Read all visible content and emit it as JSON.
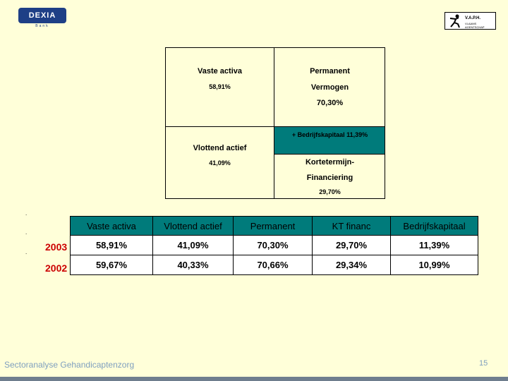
{
  "header": {
    "brand_logo": "DEXIA",
    "brand_sub": "Bank",
    "partner_logo_line1": "V.A.P.H.",
    "partner_logo_line2": "VLAAMS AGENTSCHAP"
  },
  "diagram": {
    "top_left_title": "Vaste activa",
    "top_left_value": "58,91%",
    "top_right_title": "Permanent",
    "top_right_sub": "Vermogen",
    "top_right_value": "70,30%",
    "middle_label": "+ Bedrijfskapitaal 11,39%",
    "bottom_left_title": "Vlottend actief",
    "bottom_left_value": "41,09%",
    "bottom_right_title": "Kortetermijn-",
    "bottom_right_sub": "Financiering",
    "bottom_right_value": "29,70%",
    "accent_color": "#007B7B"
  },
  "table": {
    "headers": [
      "Vaste activa",
      "Vlottend actief",
      "Permanent",
      "KT financ",
      "Bedrijfskapitaal"
    ],
    "rows": [
      {
        "year": "2003",
        "values": [
          "58,91%",
          "41,09%",
          "70,30%",
          "29,70%",
          "11,39%"
        ]
      },
      {
        "year": "2002",
        "values": [
          "59,67%",
          "40,33%",
          "70,66%",
          "29,34%",
          "10,99%"
        ]
      }
    ],
    "year_color": "#CC0000"
  },
  "footer": {
    "text": "Sectoranalyse Gehandicaptenzorg",
    "page": "15"
  }
}
